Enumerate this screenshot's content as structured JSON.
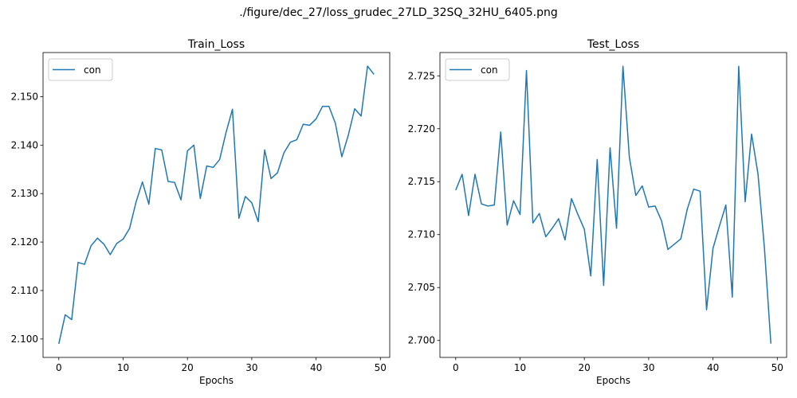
{
  "suptitle": "./figure/dec_27/loss_grudec_27LD_32SQ_32HU_6405.png",
  "chart_data": [
    {
      "type": "line",
      "title": "Train_Loss",
      "xlabel": "Epochs",
      "ylabel": "",
      "xlim": [
        -2.45,
        51.45
      ],
      "ylim": [
        2.0962,
        2.1591
      ],
      "xticks": [
        0,
        10,
        20,
        30,
        40,
        50
      ],
      "yticks": [
        2.1,
        2.11,
        2.12,
        2.13,
        2.14,
        2.15
      ],
      "ytick_labels": [
        "2.100",
        "2.110",
        "2.120",
        "2.130",
        "2.140",
        "2.150"
      ],
      "legend_position": "upper left",
      "series": [
        {
          "name": "con",
          "color": "#1f77b4",
          "x": [
            0,
            1,
            2,
            3,
            4,
            5,
            6,
            7,
            8,
            9,
            10,
            11,
            12,
            13,
            14,
            15,
            16,
            17,
            18,
            19,
            20,
            21,
            22,
            23,
            24,
            25,
            26,
            27,
            28,
            29,
            30,
            31,
            32,
            33,
            34,
            35,
            36,
            37,
            38,
            39,
            40,
            41,
            42,
            43,
            44,
            45,
            46,
            47,
            48,
            49
          ],
          "y": [
            2.099,
            2.105,
            2.104,
            2.1158,
            2.1154,
            2.1192,
            2.1208,
            2.1196,
            2.1174,
            2.1197,
            2.1206,
            2.1228,
            2.1282,
            2.1324,
            2.1278,
            2.1393,
            2.139,
            2.1325,
            2.1323,
            2.1287,
            2.1388,
            2.14,
            2.129,
            2.1357,
            2.1354,
            2.137,
            2.1426,
            2.1474,
            2.1249,
            2.1294,
            2.1281,
            2.1242,
            2.139,
            2.1331,
            2.1343,
            2.1384,
            2.1406,
            2.1411,
            2.1443,
            2.1441,
            2.1454,
            2.148,
            2.148,
            2.1445,
            2.1376,
            2.142,
            2.1475,
            2.146,
            2.1563,
            2.1546
          ]
        }
      ]
    },
    {
      "type": "line",
      "title": "Test_Loss",
      "xlabel": "Epochs",
      "ylabel": "",
      "xlim": [
        -2.45,
        51.45
      ],
      "ylim": [
        2.6984,
        2.7272
      ],
      "xticks": [
        0,
        10,
        20,
        30,
        40,
        50
      ],
      "yticks": [
        2.7,
        2.705,
        2.71,
        2.715,
        2.72,
        2.725
      ],
      "ytick_labels": [
        "2.700",
        "2.705",
        "2.710",
        "2.715",
        "2.720",
        "2.725"
      ],
      "legend_position": "upper left",
      "series": [
        {
          "name": "con",
          "color": "#1f77b4",
          "x": [
            0,
            1,
            2,
            3,
            4,
            5,
            6,
            7,
            8,
            9,
            10,
            11,
            12,
            13,
            14,
            15,
            16,
            17,
            18,
            19,
            20,
            21,
            22,
            23,
            24,
            25,
            26,
            27,
            28,
            29,
            30,
            31,
            32,
            33,
            34,
            35,
            36,
            37,
            38,
            39,
            40,
            41,
            42,
            43,
            44,
            45,
            46,
            47,
            48,
            49
          ],
          "y": [
            2.7142,
            2.7157,
            2.7118,
            2.7157,
            2.7129,
            2.7127,
            2.7128,
            2.7197,
            2.7109,
            2.7132,
            2.7119,
            2.7255,
            2.7111,
            2.712,
            2.7098,
            2.7106,
            2.7115,
            2.7095,
            2.7134,
            2.7119,
            2.7105,
            2.7061,
            2.7171,
            2.7052,
            2.7182,
            2.7106,
            2.7259,
            2.7173,
            2.7137,
            2.7146,
            2.7126,
            2.7127,
            2.7113,
            2.7086,
            2.7091,
            2.7096,
            2.7124,
            2.7143,
            2.7141,
            2.7029,
            2.7087,
            2.7108,
            2.7128,
            2.7041,
            2.7259,
            2.7131,
            2.7195,
            2.7157,
            2.7087,
            2.6997
          ]
        }
      ]
    }
  ]
}
